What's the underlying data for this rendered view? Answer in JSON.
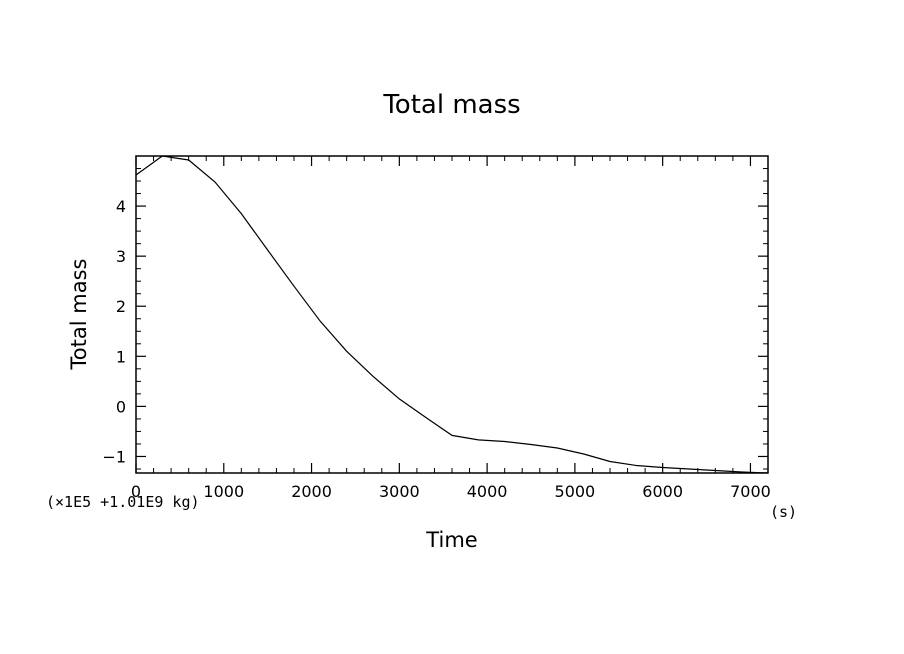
{
  "chart_data": {
    "type": "line",
    "title": "Total mass",
    "xlabel": "Time",
    "ylabel": "Total mass",
    "x_unit": "(s)",
    "y_unit": "(×1E5 +1.01E9 kg)",
    "xlim": [
      0,
      7200
    ],
    "ylim": [
      -1.33,
      5.0
    ],
    "x_ticks": [
      0,
      1000,
      2000,
      3000,
      4000,
      5000,
      6000,
      7000
    ],
    "y_ticks": [
      -1,
      0,
      1,
      2,
      3,
      4
    ],
    "grid": false,
    "series": [
      {
        "color": "#000000",
        "x": [
          0,
          300,
          600,
          900,
          1200,
          1500,
          1800,
          2100,
          2400,
          2700,
          3000,
          3300,
          3600,
          3900,
          4200,
          4500,
          4800,
          5100,
          5400,
          5700,
          6000,
          6300,
          6600,
          6900,
          7200
        ],
        "y": [
          4.62,
          5.0,
          4.92,
          4.48,
          3.85,
          3.12,
          2.4,
          1.7,
          1.1,
          0.6,
          0.15,
          -0.22,
          -0.58,
          -0.67,
          -0.7,
          -0.76,
          -0.83,
          -0.95,
          -1.1,
          -1.18,
          -1.22,
          -1.25,
          -1.28,
          -1.31,
          -1.33
        ]
      }
    ]
  }
}
